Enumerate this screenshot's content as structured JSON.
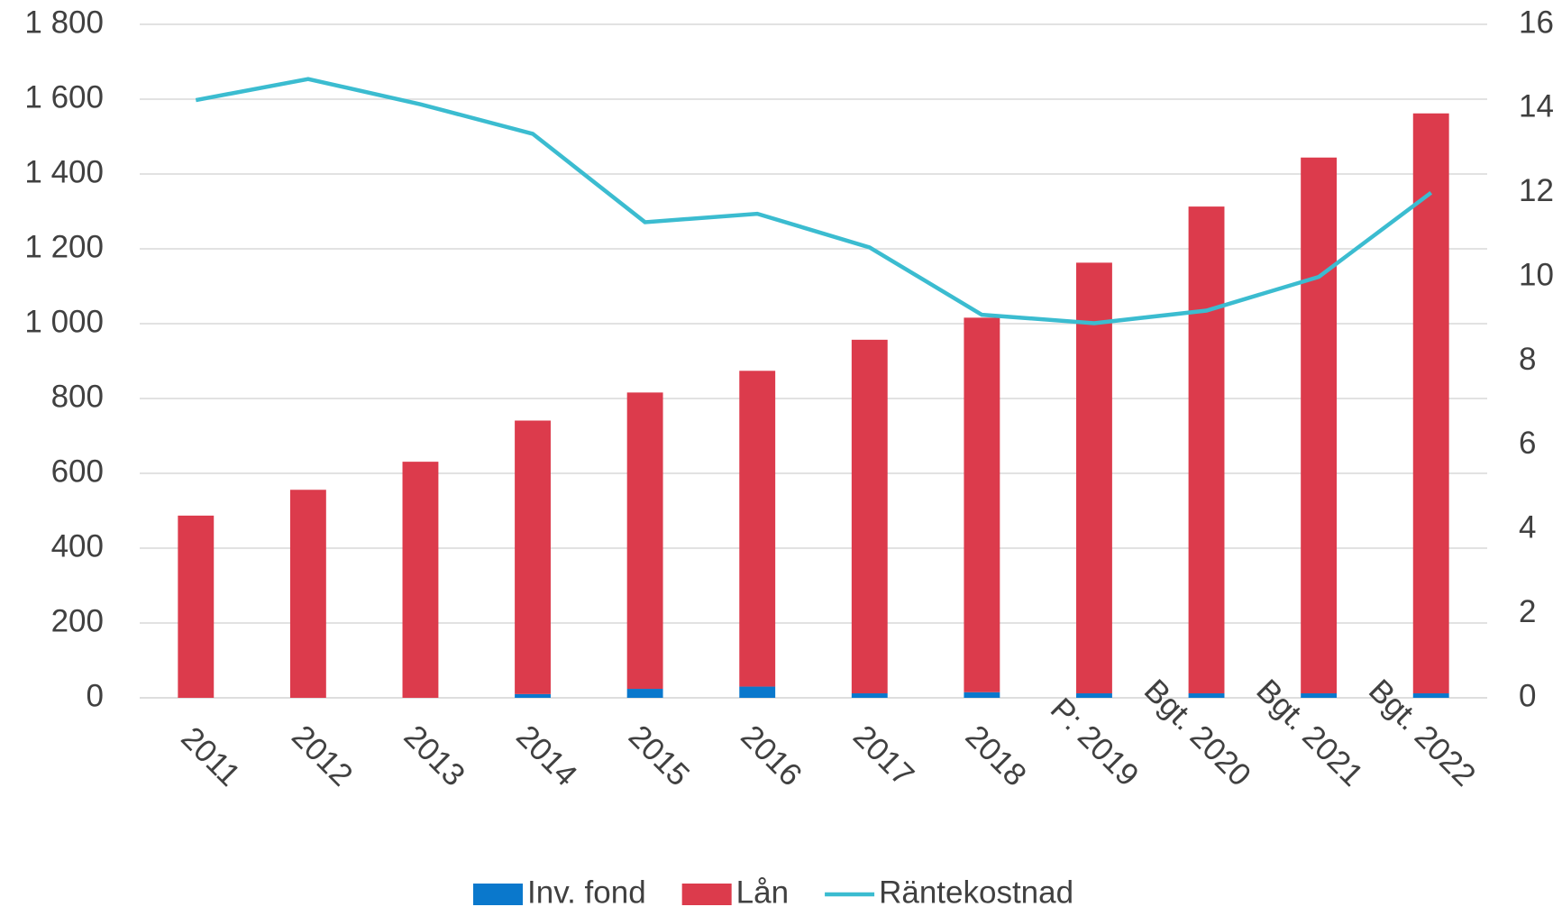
{
  "chart_data": {
    "type": "bar",
    "categories": [
      "2011",
      "2012",
      "2013",
      "2014",
      "2015",
      "2016",
      "2017",
      "2018",
      "P: 2019",
      "Bgt. 2020",
      "Bgt. 2021",
      "Bgt. 2022"
    ],
    "series": [
      {
        "name": "Inv. fond",
        "color": "#0a78cc",
        "values": [
          0,
          0,
          0,
          10,
          24,
          30,
          12,
          15,
          12,
          12,
          12,
          12
        ]
      },
      {
        "name": "Lån",
        "color": "#dc3b4c",
        "values": [
          487,
          556,
          631,
          731,
          792,
          844,
          945,
          1001,
          1151,
          1301,
          1432,
          1550
        ]
      },
      {
        "name": "Räntekostnad",
        "color": "#3bbcd0",
        "type": "line",
        "axis": "y2",
        "values": [
          14.2,
          14.7,
          14.1,
          13.4,
          11.3,
          11.5,
          10.7,
          9.1,
          8.9,
          9.2,
          10.0,
          12.0
        ]
      }
    ],
    "stacked": true,
    "ylim": [
      0,
      1800
    ],
    "yticks": [
      0,
      200,
      400,
      600,
      800,
      {
        "value": 1000,
        "label": "1 000"
      },
      {
        "value": 1200,
        "label": "1 200"
      },
      {
        "value": 1400,
        "label": "1 400"
      },
      {
        "value": 1600,
        "label": "1 600"
      },
      {
        "value": 1800,
        "label": "1 800"
      }
    ],
    "y2lim": [
      0,
      16
    ],
    "y2ticks": [
      0,
      2,
      4,
      6,
      8,
      10,
      12,
      14,
      16
    ],
    "grid": true,
    "legend": "bottom"
  }
}
